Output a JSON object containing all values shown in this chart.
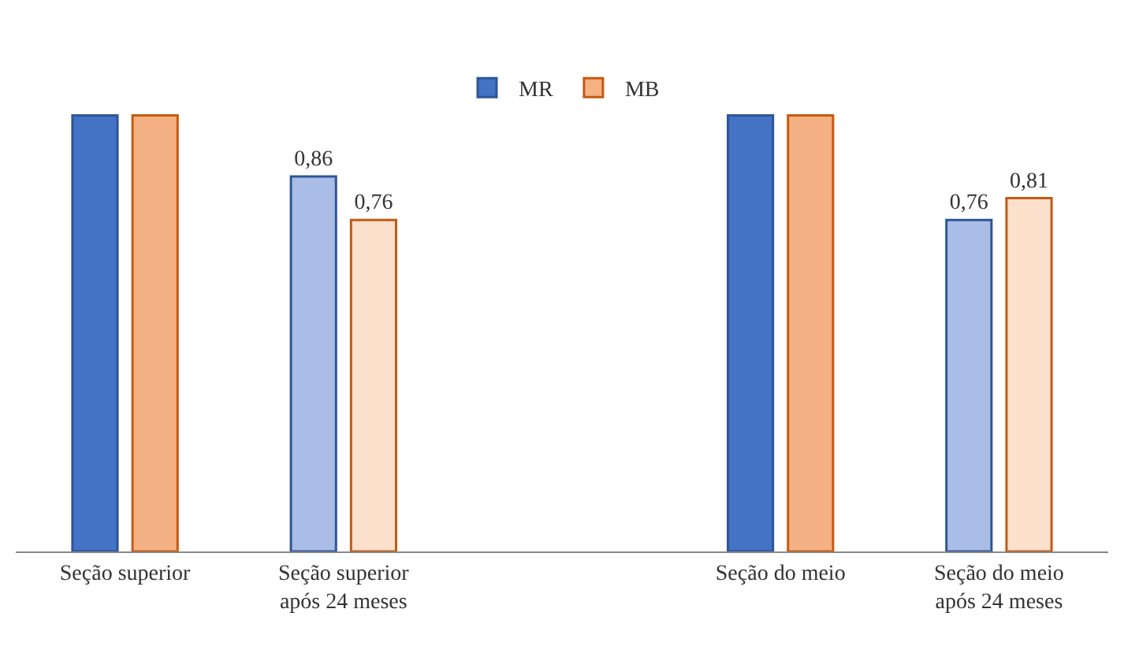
{
  "chart_data": {
    "type": "bar",
    "categories": [
      "Seção superior",
      "Seção superior\napós 24 meses",
      null,
      "Seção do meio",
      "Seção do meio\napós 24 meses"
    ],
    "series": [
      {
        "name": "MR",
        "colors": [
          "#4472c4",
          "#a9bde6",
          "#4472c4",
          "#4472c4",
          "#a9bde6"
        ],
        "values": [
          1.0,
          0.86,
          null,
          1.0,
          0.76
        ],
        "value_labels": [
          null,
          "0,86",
          null,
          null,
          "0,76"
        ]
      },
      {
        "name": "MB",
        "colors": [
          "#f4b183",
          "#fbe0cc",
          "#f4b183",
          "#f4b183",
          "#fbe0cc"
        ],
        "values": [
          1.0,
          0.76,
          null,
          1.0,
          0.81
        ],
        "value_labels": [
          null,
          "0,76",
          null,
          null,
          "0,81"
        ]
      }
    ],
    "legend": "top",
    "tick_labels": "x"
  }
}
